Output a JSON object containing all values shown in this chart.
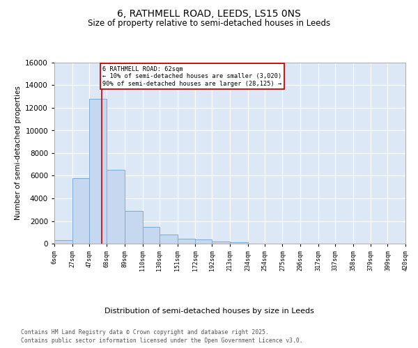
{
  "title": "6, RATHMELL ROAD, LEEDS, LS15 0NS",
  "subtitle": "Size of property relative to semi-detached houses in Leeds",
  "xlabel": "Distribution of semi-detached houses by size in Leeds",
  "ylabel": "Number of semi-detached properties",
  "bar_color": "#c5d8ef",
  "bar_edge_color": "#7aadd4",
  "background_color": "#dce8f5",
  "grid_color": "#ffffff",
  "vline_color": "#cc0000",
  "vline_x": 62,
  "annotation_text": "6 RATHMELL ROAD: 62sqm\n← 10% of semi-detached houses are smaller (3,020)\n90% of semi-detached houses are larger (28,125) →",
  "annotation_box_edgecolor": "#cc0000",
  "footer_line1": "Contains HM Land Registry data © Crown copyright and database right 2025.",
  "footer_line2": "Contains public sector information licensed under the Open Government Licence v3.0.",
  "bin_edges": [
    6,
    27,
    47,
    68,
    89,
    110,
    130,
    151,
    172,
    192,
    213,
    234,
    254,
    275,
    296,
    317,
    337,
    358,
    379,
    399,
    420
  ],
  "bin_labels": [
    "6sqm",
    "27sqm",
    "47sqm",
    "68sqm",
    "89sqm",
    "110sqm",
    "130sqm",
    "151sqm",
    "172sqm",
    "192sqm",
    "213sqm",
    "234sqm",
    "254sqm",
    "275sqm",
    "296sqm",
    "317sqm",
    "337sqm",
    "358sqm",
    "379sqm",
    "399sqm",
    "420sqm"
  ],
  "bar_heights": [
    300,
    5800,
    12800,
    6500,
    2900,
    1450,
    800,
    430,
    350,
    200,
    150,
    0,
    0,
    0,
    0,
    0,
    0,
    0,
    0,
    0
  ],
  "ylim": [
    0,
    16000
  ],
  "yticks": [
    0,
    2000,
    4000,
    6000,
    8000,
    10000,
    12000,
    14000,
    16000
  ],
  "title_fontsize": 10,
  "subtitle_fontsize": 8.5
}
